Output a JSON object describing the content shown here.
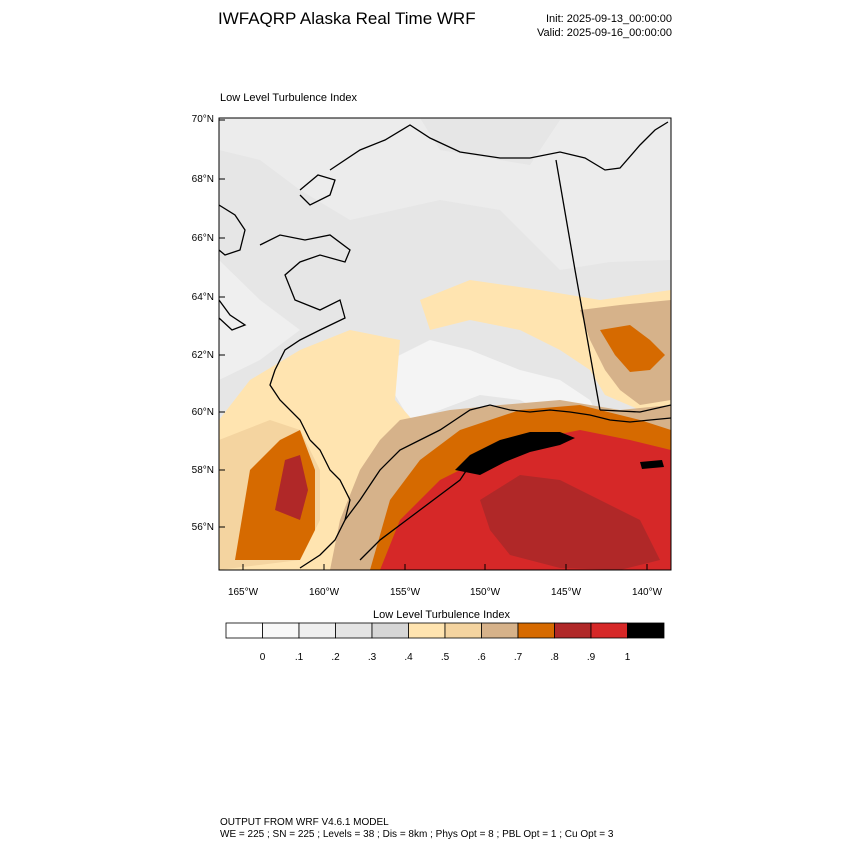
{
  "header": {
    "title": "IWFAQRP Alaska Real Time WRF",
    "init": "Init: 2025-09-13_00:00:00",
    "valid": "Valid: 2025-09-16_00:00:00"
  },
  "map": {
    "subtitle": "Low Level Turbulence Index",
    "lat_labels": [
      "70°N",
      "68°N",
      "66°N",
      "64°N",
      "62°N",
      "60°N",
      "58°N",
      "56°N"
    ],
    "lon_labels": [
      "165°W",
      "160°W",
      "155°W",
      "150°W",
      "145°W",
      "140°W"
    ]
  },
  "colorbar": {
    "title": "Low Level Turbulence Index",
    "tick_labels": [
      "0",
      ".1",
      ".2",
      ".3",
      ".4",
      ".5",
      ".6",
      ".7",
      ".8",
      ".9",
      "1"
    ],
    "colors": [
      "#ffffff",
      "#f8f8f8",
      "#efefef",
      "#e4e4e4",
      "#d6d6d6",
      "#ffe4b0",
      "#f4d4a0",
      "#d6b28a",
      "#d66a00",
      "#b02828",
      "#d62828",
      "#000000"
    ]
  },
  "footer": {
    "line1": "OUTPUT FROM WRF V4.6.1 MODEL",
    "line2": "WE = 225 ; SN = 225 ; Levels = 38 ; Dis = 8km ; Phys Opt = 8 ; PBL Opt = 1 ; Cu Opt = 3"
  }
}
